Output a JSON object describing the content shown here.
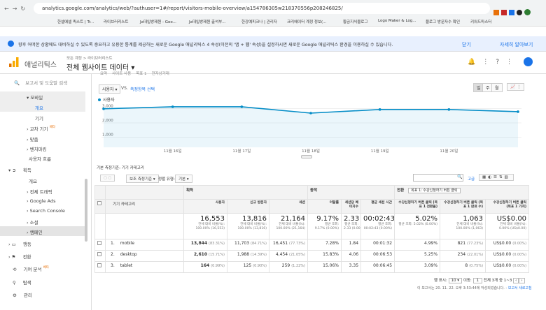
{
  "browser": {
    "url": "analytics.google.com/analytics/web/?authuser=1#/report/visitors-mobile-overview/a154786305w218370556p208246825/",
    "bookmarks": [
      "한셀에셀 퀵스트 | Tr...",
      "라이브러리스트",
      "Ja대입방제원 - Goo...",
      "Ja대입방제원 출석부...",
      "한강예피크나 | 관리자",
      "크리에이터 계정 정보(...",
      "황금지식블로그",
      "Logo Maker & Log...",
      "블로그 방문자수 확인",
      "키워드마스터"
    ]
  },
  "banner": {
    "text": "향후 어떠한 상황에도 대비하실 수 있도록 중요하고 유용한 통계를 제공하는 새로운 Google 애널리틱스 4 속성(이전의 '앱 + 웹' 속성)을 설정하시면 새로운 Google 애널리틱스 환경을 이용하실 수 있습니다.",
    "close": "닫기",
    "learn_more": "자세히 알아보기"
  },
  "header": {
    "product": "애널리틱스",
    "breadcrumb": "모든 계정 > 라이브러리스트",
    "property": "전체 웹사이트 데이터"
  },
  "sidebar": {
    "search": "보고서 및 도움말 검색",
    "mobile": "모바일",
    "overview": "개요",
    "devices": "기기",
    "cross_device": "교차 기기",
    "beta": "베타",
    "custom": "맞춤",
    "benchmarking": "벤치마킹",
    "users_flow": "사용자 흐름",
    "acquisition": "획득",
    "acq_overview": "개요",
    "all_traffic": "전체 트래픽",
    "google_ads": "Google Ads",
    "search_console": "Search Console",
    "social": "소셜",
    "campaigns": "캠페인",
    "behavior": "행동",
    "conversions": "전환",
    "attribution": "기여 분석",
    "discover": "탐색",
    "admin": "관리"
  },
  "report_tabs": [
    "요약",
    "사이트 사용",
    "목표 1",
    "전자상거래"
  ],
  "chart_controls": {
    "metric": "사용자",
    "vs": "VS.",
    "compare": "측정항목 선택",
    "periods": [
      "일",
      "주",
      "월"
    ]
  },
  "chart_data": {
    "type": "line",
    "categories": [
      null,
      "11월 16일",
      "11월 17일",
      "11월 18일",
      "11월 19일",
      "11월 20일",
      null
    ],
    "series": [
      {
        "name": "사용자",
        "color": "#058dc7",
        "values": [
          2980,
          3120,
          3120,
          2680,
          2930,
          2930,
          2780
        ]
      }
    ],
    "ylim": [
      300,
      3700
    ],
    "yticks": [
      {
        "value": 1000,
        "label": "1,000"
      },
      {
        "value": 2000,
        "label": "2,000"
      },
      {
        "value": 3000,
        "label": "3,000"
      }
    ],
    "grid": true
  },
  "table": {
    "primary_label": "기본 측정기준:",
    "primary": "기기 카테고리",
    "secondary": "보조 측정기준",
    "sort_label": "정렬 유형:",
    "sort": "기본",
    "advanced": "고급",
    "groups": [
      "획득",
      "동작",
      "전환"
    ],
    "goal_select": "목표 1: 수강신청하기 버튼 클릭",
    "dimension_header": "기기 카테고리",
    "columns": [
      "사용자",
      "신규 방문자",
      "세션",
      "이탈률",
      "세션당 페이지수",
      "평균 세션 시간",
      "수강신청하기 버튼 클릭 (목표 1 전환율)",
      "수강신청하기 버튼 클릭 (목표 1 완료 수)",
      "수강신청하기 버튼 클릭 (목표 1 가치)"
    ],
    "totals": [
      {
        "value": "16,553",
        "note": [
          "전체 대비 비율(%):",
          "100.00% (16,553)"
        ]
      },
      {
        "value": "13,816",
        "note": [
          "전체 대비 비율(%):",
          "100.00% (13,816)"
        ]
      },
      {
        "value": "21,164",
        "note": [
          "전체 대비 비율(%):",
          "100.00% (21,164)"
        ]
      },
      {
        "value": "9.17%",
        "note": [
          "평균 조회:",
          "9.17% (0.00%)"
        ]
      },
      {
        "value": "2.33",
        "note": [
          "평균 조회:",
          "2.33 (0.00%)"
        ]
      },
      {
        "value": "00:02:43",
        "note": [
          "평균 조회:",
          "00:02:43 (0.00%)"
        ]
      },
      {
        "value": "5.02%",
        "note": [
          "평균 조회: 5.02% (0.00%)"
        ]
      },
      {
        "value": "1,063",
        "note": [
          "전체 대비 비율(%):",
          "100.00% (1,063)"
        ]
      },
      {
        "value": "US$0.00",
        "note": [
          "전체 대비 비율(%):",
          "0.00% (US$0.00)"
        ]
      }
    ],
    "rows": [
      {
        "index": "1.",
        "name": "mobile",
        "cells": [
          [
            "13,844",
            "(83.31%)"
          ],
          [
            "11,703",
            "(84.71%)"
          ],
          [
            "16,451",
            "(77.73%)"
          ],
          [
            "7.28%"
          ],
          [
            "1.84"
          ],
          [
            "00:01:32"
          ],
          [
            "4.99%"
          ],
          [
            "821",
            "(77.23%)"
          ],
          [
            "US$0.00",
            "(0.00%)"
          ]
        ]
      },
      {
        "index": "2.",
        "name": "desktop",
        "cells": [
          [
            "2,610",
            "(15.71%)"
          ],
          [
            "1,988",
            "(14.39%)"
          ],
          [
            "4,454",
            "(21.05%)"
          ],
          [
            "15.83%"
          ],
          [
            "4.06"
          ],
          [
            "00:06:53"
          ],
          [
            "5.25%"
          ],
          [
            "234",
            "(22.01%)"
          ],
          [
            "US$0.00",
            "(0.00%)"
          ]
        ]
      },
      {
        "index": "3.",
        "name": "tablet",
        "cells": [
          [
            "164",
            "(0.99%)"
          ],
          [
            "125",
            "(0.90%)"
          ],
          [
            "259",
            "(1.22%)"
          ],
          [
            "15.06%"
          ],
          [
            "3.35"
          ],
          [
            "00:06:45"
          ],
          [
            "3.09%"
          ],
          [
            "8",
            "(0.75%)"
          ],
          [
            "US$0.00",
            "(0.00%)"
          ]
        ]
      }
    ]
  },
  "footer": {
    "show_rows": "행 표시:",
    "rows": "10",
    "goto": "이동:",
    "page": "1",
    "range": "전체 3개 중 1~3",
    "generated": "이 보고서는 20. 11. 22. 오후 3:53:44에 작성되었습니다.",
    "refresh": "보고서 새로고침"
  }
}
